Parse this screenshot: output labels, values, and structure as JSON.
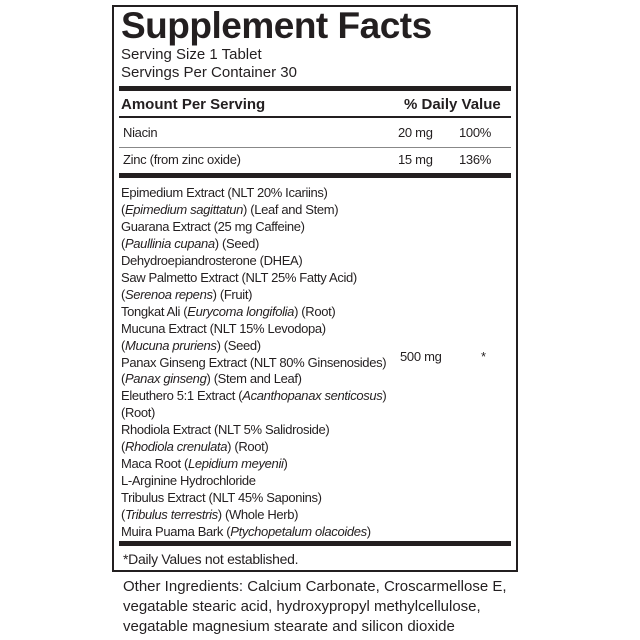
{
  "title": "Supplement Facts",
  "serving_size": "Serving Size 1 Tablet",
  "servings_per_container": "Servings Per Container 30",
  "header": {
    "amount": "Amount Per Serving",
    "dv": "% Daily Value"
  },
  "nutrients": [
    {
      "name": "Niacin",
      "amount": "20 mg",
      "dv": "100%"
    },
    {
      "name": "Zinc (from zinc oxide)",
      "amount": "15 mg",
      "dv": "136%"
    }
  ],
  "blend": {
    "amount": "500 mg",
    "dv": "*",
    "lines": [
      [
        [
          "Epimedium Extract (NLT 20% Icariins)",
          0
        ]
      ],
      [
        [
          "(",
          0
        ],
        [
          "Epimedium sagittatun",
          1
        ],
        [
          ") (Leaf and Stem)",
          0
        ]
      ],
      [
        [
          "Guarana Extract (25 mg Caffeine)",
          0
        ]
      ],
      [
        [
          "(",
          0
        ],
        [
          "Paullinia cupana",
          1
        ],
        [
          ")  (Seed)",
          0
        ]
      ],
      [
        [
          "Dehydroepiandrosterone (DHEA)",
          0
        ]
      ],
      [
        [
          "Saw Palmetto Extract (NLT 25% Fatty Acid)",
          0
        ]
      ],
      [
        [
          "(",
          0
        ],
        [
          "Serenoa repens",
          1
        ],
        [
          ") (Fruit)",
          0
        ]
      ],
      [
        [
          "Tongkat Ali (",
          0
        ],
        [
          "Eurycoma longifolia",
          1
        ],
        [
          ") (Root)",
          0
        ]
      ],
      [
        [
          "Mucuna Extract (NLT 15% Levodopa)",
          0
        ]
      ],
      [
        [
          "(",
          0
        ],
        [
          "Mucuna pruriens",
          1
        ],
        [
          ") (Seed)",
          0
        ]
      ],
      [
        [
          "Panax Ginseng Extract (NLT 80% Ginsenosides)",
          0
        ]
      ],
      [
        [
          "(",
          0
        ],
        [
          "Panax ginseng",
          1
        ],
        [
          ") (Stem and Leaf)",
          0
        ]
      ],
      [
        [
          "Eleuthero 5:1 Extract (",
          0
        ],
        [
          "Acanthopanax senticosus",
          1
        ],
        [
          ")",
          0
        ]
      ],
      [
        [
          "(Root)",
          0
        ]
      ],
      [
        [
          "Rhodiola Extract (NLT 5% Salidroside)",
          0
        ]
      ],
      [
        [
          "(",
          0
        ],
        [
          "Rhodiola crenulata",
          1
        ],
        [
          ") (Root)",
          0
        ]
      ],
      [
        [
          "Maca Root (",
          0
        ],
        [
          "Lepidium meyenii",
          1
        ],
        [
          ")",
          0
        ]
      ],
      [
        [
          "L-Arginine Hydrochloride",
          0
        ]
      ],
      [
        [
          "Tribulus Extract (NLT 45% Saponins)",
          0
        ]
      ],
      [
        [
          "(",
          0
        ],
        [
          "Tribulus terrestris",
          1
        ],
        [
          ") (Whole Herb)",
          0
        ]
      ],
      [
        [
          "Muira Puama Bark (",
          0
        ],
        [
          "Ptychopetalum olacoides",
          1
        ],
        [
          ")",
          0
        ]
      ]
    ]
  },
  "footnote": "*Daily Values not established.",
  "other_ingredients": [
    "Other Ingredients: Calcium Carbonate, Croscarmellose E,",
    "vegatable stearic acid, hydroxypropyl methylcellulose,",
    "vegatable magnesium stearate and silicon dioxide"
  ]
}
